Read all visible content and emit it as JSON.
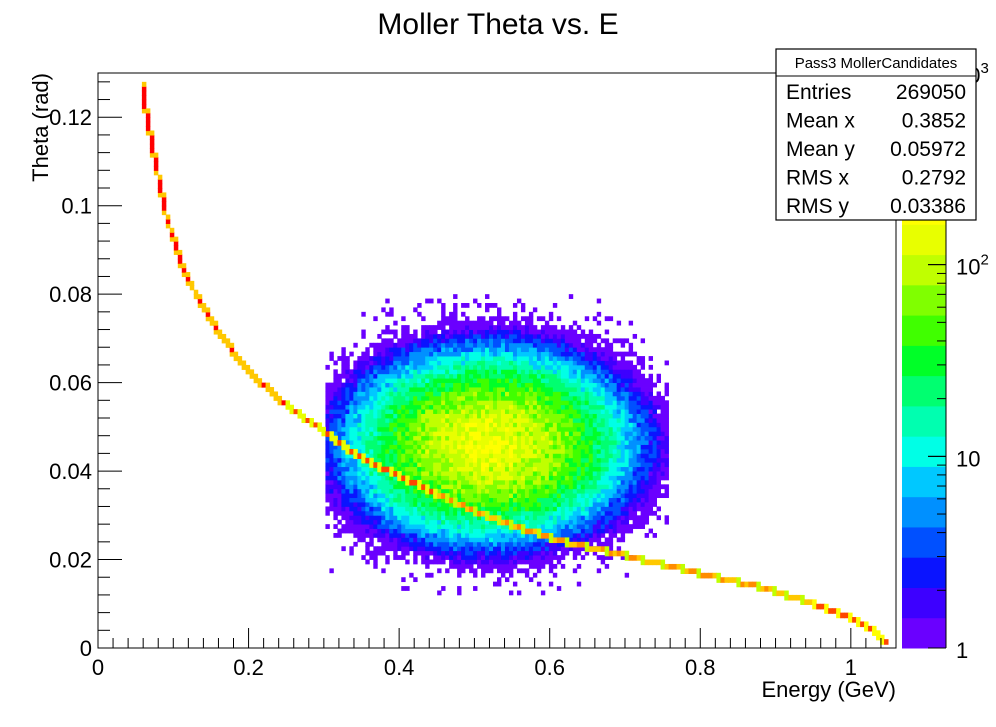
{
  "chart_data": {
    "type": "heatmap",
    "title": "Moller Theta vs. E",
    "xlabel": "Energy (GeV)",
    "ylabel": "Theta (rad)",
    "xlim": [
      0,
      1.06
    ],
    "ylim": [
      0,
      0.13
    ],
    "x_ticks": [
      0,
      0.2,
      0.4,
      0.6,
      0.8,
      1
    ],
    "x_tick_labels": [
      "0",
      "0.2",
      "0.4",
      "0.6",
      "0.8",
      "1"
    ],
    "y_ticks": [
      0,
      0.02,
      0.04,
      0.06,
      0.08,
      0.1,
      0.12
    ],
    "y_tick_labels": [
      "0",
      "0.02",
      "0.04",
      "0.06",
      "0.08",
      "0.1",
      "0.12"
    ],
    "z_scale": "log",
    "zlim": [
      1,
      1000
    ],
    "z_tick_labels": [
      {
        "value": 1,
        "label": "1"
      },
      {
        "value": 10,
        "label": "10"
      },
      {
        "value": 100,
        "label": "10",
        "sup": "2"
      },
      {
        "value": 1000,
        "label": "10",
        "sup": "3"
      }
    ],
    "palette": [
      "#6a00ff",
      "#3d00ff",
      "#0a14ff",
      "#0050ff",
      "#0090ff",
      "#00c8ff",
      "#00ffe6",
      "#00ffb0",
      "#00ff70",
      "#00ff28",
      "#40ff00",
      "#80ff00",
      "#c0ff00",
      "#e8ff00",
      "#ffff00",
      "#ffc800",
      "#ff8c00",
      "#ff4600",
      "#ff0000"
    ],
    "ridge": {
      "description_points": [
        [
          0.056,
          0.13
        ],
        [
          0.07,
          0.115
        ],
        [
          0.09,
          0.098
        ],
        [
          0.11,
          0.087
        ],
        [
          0.13,
          0.08
        ],
        [
          0.15,
          0.074
        ],
        [
          0.18,
          0.067
        ],
        [
          0.21,
          0.061
        ],
        [
          0.25,
          0.055
        ],
        [
          0.3,
          0.049
        ],
        [
          0.35,
          0.043
        ],
        [
          0.4,
          0.039
        ],
        [
          0.45,
          0.035
        ],
        [
          0.5,
          0.031
        ],
        [
          0.55,
          0.028
        ],
        [
          0.6,
          0.025
        ],
        [
          0.65,
          0.023
        ],
        [
          0.7,
          0.021
        ],
        [
          0.75,
          0.019
        ],
        [
          0.8,
          0.017
        ],
        [
          0.85,
          0.015
        ],
        [
          0.9,
          0.013
        ],
        [
          0.95,
          0.01
        ],
        [
          1.0,
          0.007
        ],
        [
          1.03,
          0.004
        ],
        [
          1.05,
          0.001
        ]
      ],
      "peak_level": 1000
    },
    "blob": {
      "center": [
        0.52,
        0.046
      ],
      "sigma_x": 0.075,
      "sigma_y": 0.0085,
      "tilt": -0.45,
      "peak_level": 150
    },
    "stats": {
      "name": "Pass3 MollerCandidates",
      "rows": [
        {
          "label": "Entries",
          "value": "269050"
        },
        {
          "label": "Mean x",
          "value": "0.3852"
        },
        {
          "label": "Mean y",
          "value": "0.05972"
        },
        {
          "label": "RMS x",
          "value": "0.2792"
        },
        {
          "label": "RMS y",
          "value": "0.03386"
        }
      ]
    }
  }
}
